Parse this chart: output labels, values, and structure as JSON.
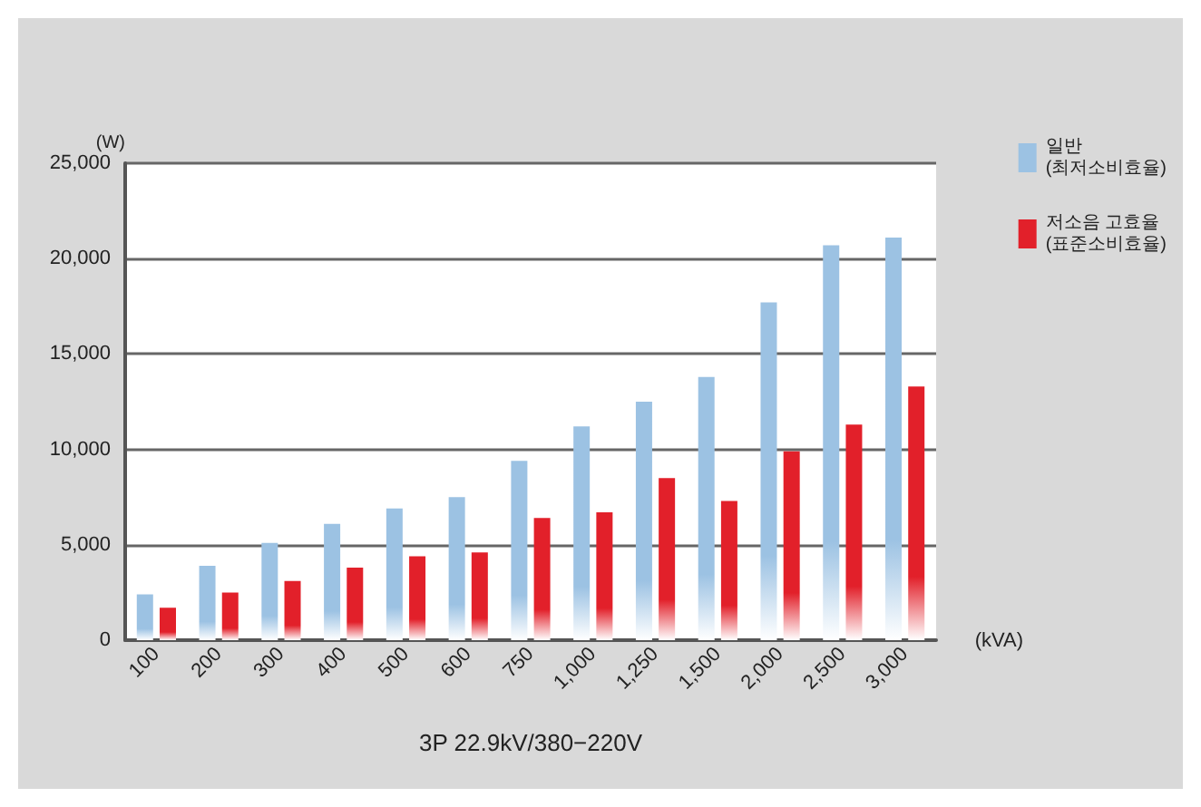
{
  "chart_data": {
    "type": "bar",
    "ylabel": "(W)",
    "xlabel": "3P 22.9kV/380−220V",
    "annotations": [
      "(kVA)"
    ],
    "categories": [
      "100",
      "200",
      "300",
      "400",
      "500",
      "600",
      "750",
      "1,000",
      "1,250",
      "1,500",
      "2,000",
      "2,500",
      "3,000"
    ],
    "series": [
      {
        "name": "일반\n(최저소비효율)",
        "color": "#9cc2e3",
        "values": [
          2400,
          3900,
          5100,
          6100,
          6900,
          7500,
          9400,
          11200,
          12500,
          13800,
          17700,
          20700,
          21100
        ]
      },
      {
        "name": "저소음 고효율\n(표준소비효율)",
        "color": "#e2202a",
        "values": [
          1700,
          2500,
          3100,
          3800,
          4400,
          4600,
          6400,
          6700,
          8500,
          7300,
          9900,
          11300,
          13300
        ]
      }
    ],
    "ylim": [
      0,
      25000
    ],
    "yticks": [
      0,
      {
        "value": 5000,
        "label": "5,000"
      },
      {
        "value": 10000,
        "label": "10,000"
      },
      {
        "value": 15000,
        "label": "15,000"
      },
      {
        "value": 20000,
        "label": "20,000"
      },
      {
        "value": 25000,
        "label": "25,000"
      }
    ],
    "grid": "y",
    "legend": "top right"
  }
}
